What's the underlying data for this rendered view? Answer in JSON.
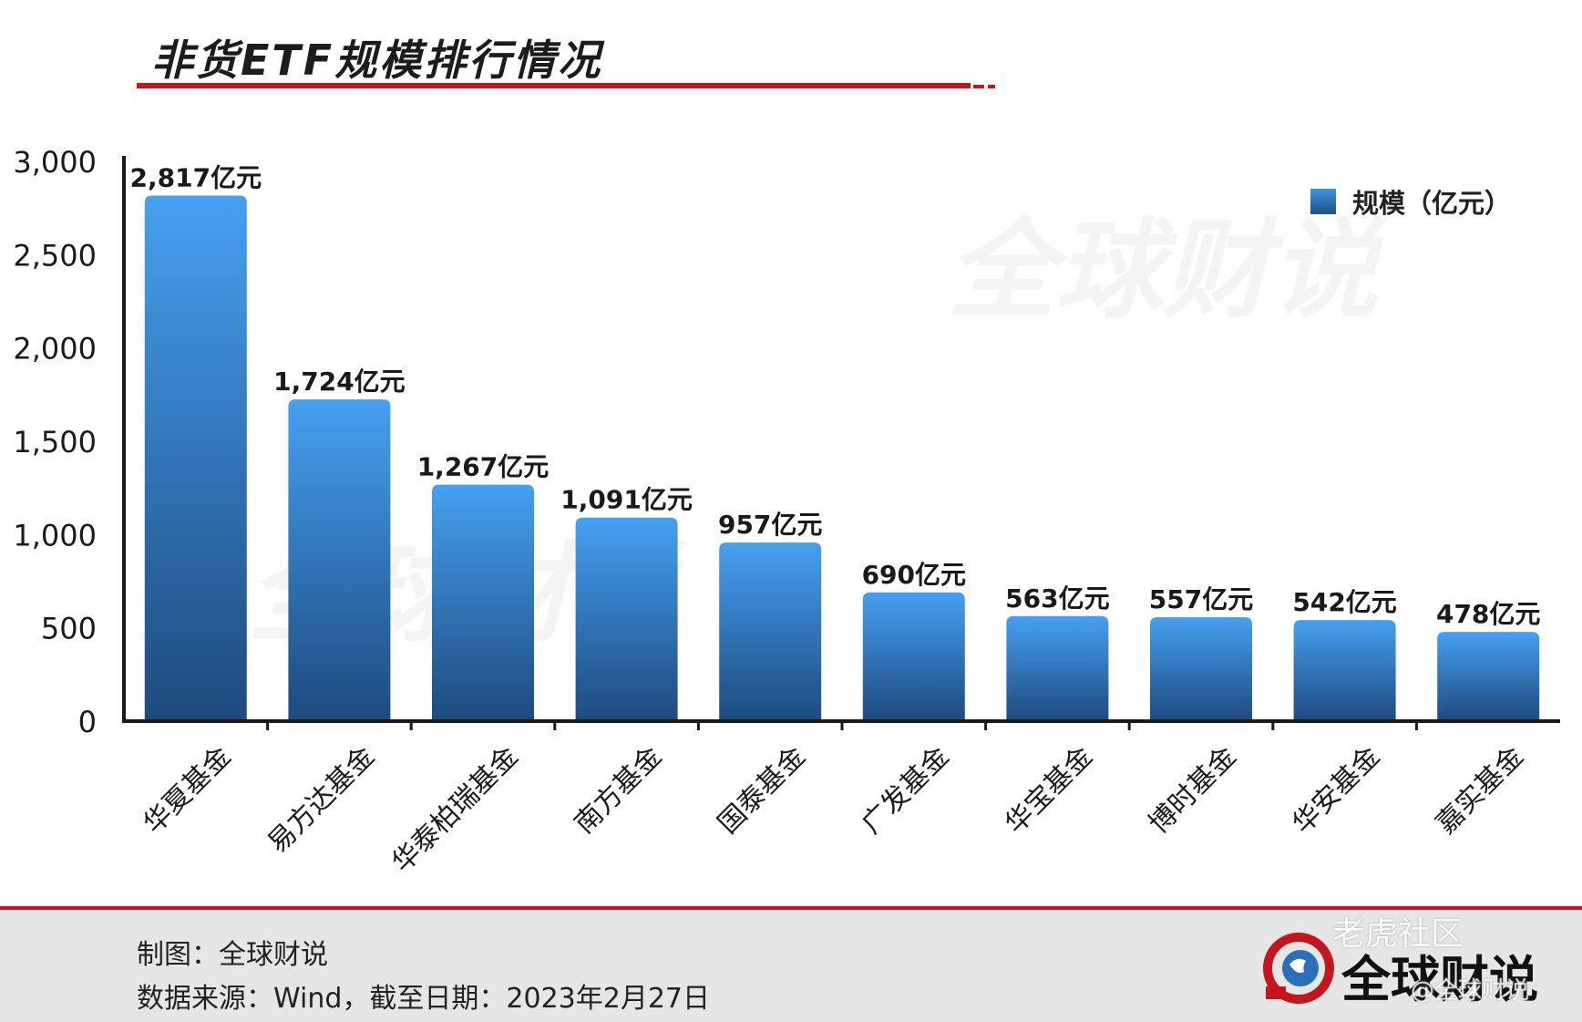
{
  "title": "非货ETF规模排行情况",
  "watermark": "全球财说",
  "legend": {
    "label": "规模（亿元）"
  },
  "footer": {
    "credit": "制图：全球财说",
    "source": "数据来源：Wind，截至日期：2023年2月27日",
    "brand": "全球财说",
    "community": "老虎社区",
    "handle": "@全球财说"
  },
  "colors": {
    "accent_red": "#c4161c",
    "bar_top": "#46a0f0",
    "bar_bottom": "#1e4a7e"
  },
  "chart_data": {
    "type": "bar",
    "title": "非货ETF规模排行情况",
    "xlabel": "",
    "ylabel": "",
    "ylim": [
      0,
      3000
    ],
    "yticks": [
      0,
      500,
      1000,
      1500,
      2000,
      2500,
      3000
    ],
    "ytick_labels": [
      "0",
      "500",
      "1,000",
      "1,500",
      "2,000",
      "2,500",
      "3,000"
    ],
    "categories": [
      "华夏基金",
      "易方达基金",
      "华泰柏瑞基金",
      "南方基金",
      "国泰基金",
      "广发基金",
      "华宝基金",
      "博时基金",
      "华安基金",
      "嘉实基金"
    ],
    "series": [
      {
        "name": "规模（亿元）",
        "values": [
          2817,
          1724,
          1267,
          1091,
          957,
          690,
          563,
          557,
          542,
          478
        ],
        "data_labels": [
          "2,817亿元",
          "1,724亿元",
          "1,267亿元",
          "1,091亿元",
          "957亿元",
          "690亿元",
          "563亿元",
          "557亿元",
          "542亿元",
          "478亿元"
        ]
      }
    ],
    "grid": false,
    "legend_position": "top-right"
  }
}
